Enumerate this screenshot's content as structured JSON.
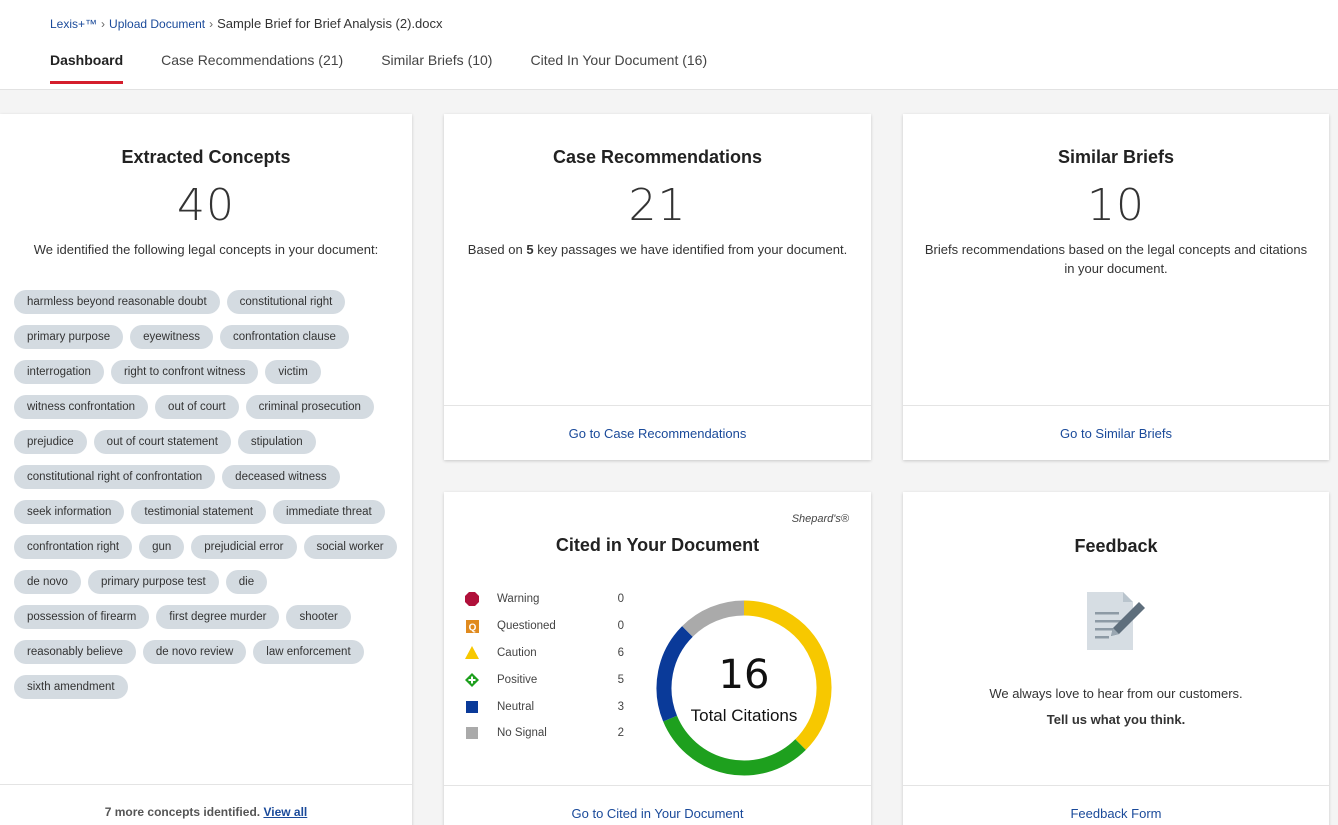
{
  "breadcrumb": {
    "root": "Lexis+™",
    "upload": "Upload Document",
    "current": "Sample Brief for Brief Analysis (2).docx"
  },
  "tabs": [
    {
      "label": "Dashboard",
      "active": true
    },
    {
      "label": "Case Recommendations (21)"
    },
    {
      "label": "Similar Briefs (10)"
    },
    {
      "label": "Cited In Your Document (16)"
    }
  ],
  "concepts": {
    "title": "Extracted Concepts",
    "count": "40",
    "description": "We identified the following legal concepts in your document:",
    "chips": [
      "harmless beyond reasonable doubt",
      "constitutional right",
      "primary purpose",
      "eyewitness",
      "confrontation clause",
      "interrogation",
      "right to confront witness",
      "victim",
      "witness confrontation",
      "out of court",
      "criminal prosecution",
      "prejudice",
      "out of court statement",
      "stipulation",
      "constitutional right of confrontation",
      "deceased witness",
      "seek information",
      "testimonial statement",
      "immediate threat",
      "confrontation right",
      "gun",
      "prejudicial error",
      "social worker",
      "de novo",
      "primary purpose test",
      "die",
      "possession of firearm",
      "first degree murder",
      "shooter",
      "reasonably believe",
      "de novo review",
      "law enforcement",
      "sixth amendment"
    ],
    "footer_text": "7 more concepts identified.",
    "footer_link": "View all"
  },
  "case_recommendations": {
    "title": "Case Recommendations",
    "count": "21",
    "description_pre": "Based on ",
    "description_bold": "5",
    "description_post": " key passages we have identified from your document.",
    "link": "Go to Case Recommendations"
  },
  "similar_briefs": {
    "title": "Similar Briefs",
    "count": "10",
    "description": "Briefs recommendations based on the legal concepts and citations in your document.",
    "link": "Go to Similar Briefs"
  },
  "cited": {
    "title": "Cited in Your Document",
    "brand": "Shepard's®",
    "total": "16",
    "total_label": "Total Citations",
    "legend": [
      {
        "label": "Warning",
        "count": "0",
        "color": "#b0103a",
        "icon": "warning-icon"
      },
      {
        "label": "Questioned",
        "count": "0",
        "color": "#e08a1e",
        "icon": "questioned-icon"
      },
      {
        "label": "Caution",
        "count": "6",
        "color": "#f7c800",
        "icon": "caution-icon"
      },
      {
        "label": "Positive",
        "count": "5",
        "color": "#1ea01e",
        "icon": "positive-icon"
      },
      {
        "label": "Neutral",
        "count": "3",
        "color": "#0a3a99",
        "icon": "neutral-icon"
      },
      {
        "label": "No Signal",
        "count": "2",
        "color": "#aaaaaa",
        "icon": "no-signal-icon"
      }
    ],
    "link": "Go to Cited in Your Document"
  },
  "feedback": {
    "title": "Feedback",
    "icon": "document-edit-icon",
    "line1": "We always love to hear from our customers.",
    "line2": "Tell us what you think.",
    "link": "Feedback Form"
  }
}
